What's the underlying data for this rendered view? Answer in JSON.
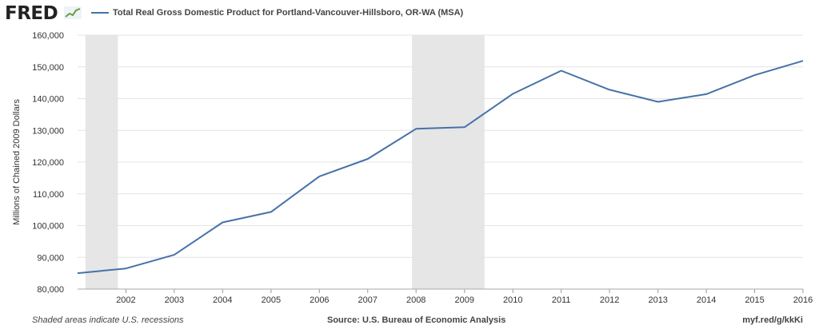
{
  "header": {
    "logo_text": "FRED",
    "logo_icon": "line-chart-icon"
  },
  "footer": {
    "note": "Shaded areas indicate U.S. recessions",
    "source": "Source: U.S. Bureau of Economic Analysis",
    "link": "myf.red/g/kkKi"
  },
  "colors": {
    "line": "#4572a7",
    "recession": "#e6e6e6",
    "grid": "#e4e4e4",
    "axis_text": "#333333"
  },
  "chart_data": {
    "type": "line",
    "title": "",
    "ylabel": "Millions of Chained 2009 Dollars",
    "xlabel": "",
    "ylim": [
      80000,
      160000
    ],
    "y_ticks": [
      80000,
      90000,
      100000,
      110000,
      120000,
      130000,
      140000,
      150000,
      160000
    ],
    "y_tick_labels": [
      "80,000",
      "90,000",
      "100,000",
      "110,000",
      "120,000",
      "130,000",
      "140,000",
      "150,000",
      "160,000"
    ],
    "x_ticks": [
      "2002",
      "2003",
      "2004",
      "2005",
      "2006",
      "2007",
      "2008",
      "2009",
      "2010",
      "2011",
      "2012",
      "2013",
      "2014",
      "2015",
      "2016"
    ],
    "xlim": [
      "2001-01-01",
      "2016-01-01"
    ],
    "grid": true,
    "legend": "top-left",
    "recessions": [
      {
        "start": "2001-03-01",
        "end": "2001-11-01"
      },
      {
        "start": "2007-12-01",
        "end": "2009-06-01"
      }
    ],
    "series": [
      {
        "name": "Total Real Gross Domestic Product for Portland-Vancouver-Hillsboro, OR-WA (MSA)",
        "x": [
          "2001-01-01",
          "2002-01-01",
          "2003-01-01",
          "2004-01-01",
          "2005-01-01",
          "2006-01-01",
          "2007-01-01",
          "2008-01-01",
          "2009-01-01",
          "2010-01-01",
          "2011-01-01",
          "2012-01-01",
          "2013-01-01",
          "2014-01-01",
          "2015-01-01",
          "2016-01-01"
        ],
        "values": [
          85000,
          86500,
          90800,
          101000,
          104300,
          115500,
          121000,
          130500,
          131000,
          141500,
          148800,
          142800,
          139000,
          141400,
          147400,
          151900
        ]
      }
    ]
  }
}
